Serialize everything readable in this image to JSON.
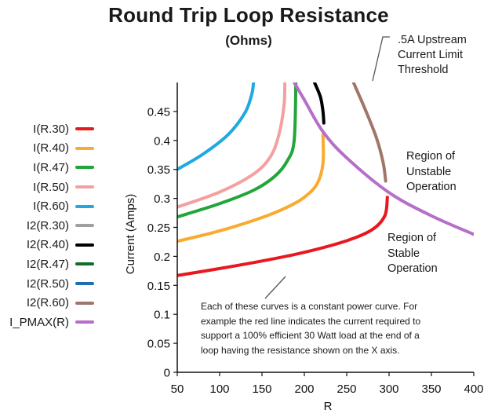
{
  "chart_data": {
    "type": "line",
    "title": "Round Trip Loop Resistance",
    "subtitle": "(Ohms)",
    "xlabel": "R",
    "ylabel": "Current (Amps)",
    "xlim": [
      50,
      400
    ],
    "ylim": [
      0,
      0.5
    ],
    "x_ticks": [
      "50",
      "100",
      "150",
      "200",
      "250",
      "300",
      "350",
      "400"
    ],
    "y_ticks": [
      "0",
      "0.05",
      "0.1",
      "0.15",
      "0.2",
      "0.25",
      "0.3",
      "0.35",
      "0.4",
      "0.45"
    ],
    "x_tick_values": [
      50,
      100,
      150,
      200,
      250,
      300,
      350,
      400
    ],
    "y_tick_values": [
      0,
      0.05,
      0.1,
      0.15,
      0.2,
      0.25,
      0.3,
      0.35,
      0.4,
      0.45
    ],
    "grid": false,
    "legend_position": "left",
    "series": [
      {
        "name": "I(R.30)",
        "color": "#e8181f",
        "x": [
          50,
          100,
          150,
          200,
          250,
          280,
          295,
          298
        ],
        "y": [
          0.167,
          0.179,
          0.192,
          0.207,
          0.227,
          0.246,
          0.27,
          0.302
        ]
      },
      {
        "name": "I(R.40)",
        "color": "#f9ab2f",
        "x": [
          50,
          100,
          150,
          180,
          200,
          215,
          222,
          222
        ],
        "y": [
          0.226,
          0.244,
          0.267,
          0.285,
          0.302,
          0.325,
          0.36,
          0.41
        ]
      },
      {
        "name": "I(R.47)",
        "color": "#22a63a",
        "x": [
          50,
          100,
          140,
          165,
          180,
          188,
          190
        ],
        "y": [
          0.268,
          0.291,
          0.314,
          0.338,
          0.365,
          0.4,
          0.5
        ]
      },
      {
        "name": "I(R.50)",
        "color": "#f4a0a0",
        "x": [
          50,
          100,
          140,
          160,
          170,
          176,
          177
        ],
        "y": [
          0.285,
          0.311,
          0.342,
          0.372,
          0.41,
          0.46,
          0.5
        ]
      },
      {
        "name": "I(R.60)",
        "color": "#1fa9e1",
        "x": [
          50,
          80,
          110,
          130,
          138,
          140
        ],
        "y": [
          0.35,
          0.376,
          0.41,
          0.448,
          0.48,
          0.5
        ]
      },
      {
        "name": "I2(R.30)",
        "color": "#a0a0a0",
        "x": [],
        "y": []
      },
      {
        "name": "I2(R.40)",
        "color": "#000000",
        "x": [
          212,
          219,
          222,
          223
        ],
        "y": [
          0.5,
          0.475,
          0.45,
          0.43
        ]
      },
      {
        "name": "I2(R.47)",
        "color": "#0f6e2a",
        "x": [],
        "y": []
      },
      {
        "name": "I2(R.50)",
        "color": "#1c6fb4",
        "x": [],
        "y": []
      },
      {
        "name": "I2(R.60)",
        "color": "#a1766a",
        "x": [
          258,
          272,
          285,
          293,
          296
        ],
        "y": [
          0.5,
          0.453,
          0.405,
          0.362,
          0.33
        ]
      },
      {
        "name": "I_PMAX(R)",
        "color": "#b56fc8",
        "x": [
          188,
          200,
          222,
          250,
          300,
          350,
          400
        ],
        "y": [
          0.5,
          0.47,
          0.415,
          0.37,
          0.31,
          0.27,
          0.238
        ]
      }
    ],
    "annotations": {
      "threshold": [
        ".5A Upstream",
        "Current Limit",
        "Threshold"
      ],
      "unstable": [
        "Region of",
        "Unstable",
        "Operation"
      ],
      "stable": [
        "Region of",
        "Stable",
        "Operation"
      ],
      "note": [
        "Each of these curves is a constant power curve. For",
        "example the red line indicates the current required to",
        "support a 100% efficient 30 Watt load at the end of a",
        "loop having the resistance shown on the X axis."
      ]
    }
  }
}
